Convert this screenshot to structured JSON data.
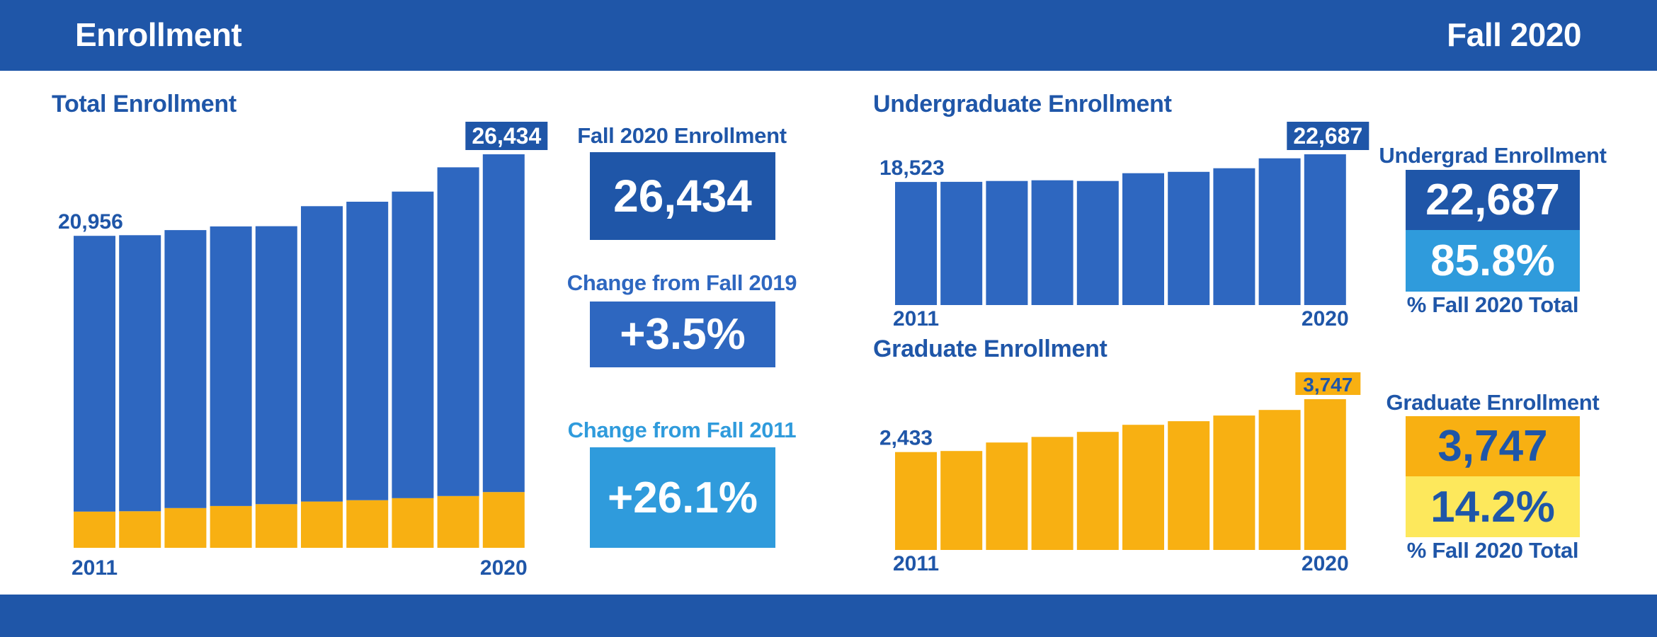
{
  "header": {
    "title": "Enrollment",
    "term": "Fall 2020"
  },
  "colors": {
    "brand_blue": "#1f56a8",
    "bar_blue": "#2e67c0",
    "light_blue": "#2f9bdc",
    "gold": "#f8b012",
    "light_yellow": "#fde85c",
    "white": "#ffffff"
  },
  "total": {
    "title": "Total Enrollment",
    "kpis": [
      {
        "label": "Fall 2020 Enrollment",
        "value": "26,434"
      },
      {
        "label": "Change from Fall 2019",
        "value": "+3.5%"
      },
      {
        "label": "Change from Fall 2011",
        "value": "+26.1%"
      }
    ]
  },
  "undergrad": {
    "title": "Undergraduate Enrollment",
    "kpi_label": "Undergrad Enrollment",
    "kpi_value": "22,687",
    "kpi_share": "85.8%",
    "kpi_share_caption": "% Fall 2020 Total"
  },
  "graduate": {
    "title": "Graduate Enrollment",
    "kpi_label": "Graduate Enrollment",
    "kpi_value": "3,747",
    "kpi_share": "14.2%",
    "kpi_share_caption": "% Fall 2020 Total"
  },
  "chart_data": [
    {
      "id": "total",
      "type": "bar",
      "stacked": true,
      "title": "Total Enrollment",
      "categories": [
        "2011",
        "2012",
        "2013",
        "2014",
        "2015",
        "2016",
        "2017",
        "2018",
        "2019",
        "2020"
      ],
      "tick_labels": [
        "2011",
        "2020"
      ],
      "series": [
        {
          "name": "Graduate",
          "color": "#f8b012",
          "values": [
            2433,
            2460,
            2670,
            2810,
            2935,
            3110,
            3200,
            3340,
            3480,
            3747
          ]
        },
        {
          "name": "Undergraduate",
          "color": "#2e67c0",
          "values": [
            18523,
            18540,
            18670,
            18780,
            18670,
            19840,
            20050,
            20590,
            22080,
            22687
          ]
        }
      ],
      "data_labels": [
        {
          "category": "2011",
          "text": "20,956",
          "boxed": false
        },
        {
          "category": "2020",
          "text": "26,434",
          "boxed": true
        }
      ],
      "ylim": [
        0,
        26434
      ],
      "grid": false,
      "legend": "none"
    },
    {
      "id": "undergrad",
      "type": "bar",
      "title": "Undergraduate Enrollment",
      "categories": [
        "2011",
        "2012",
        "2013",
        "2014",
        "2015",
        "2016",
        "2017",
        "2018",
        "2019",
        "2020"
      ],
      "tick_labels": [
        "2011",
        "2020"
      ],
      "series": [
        {
          "name": "Undergraduate",
          "color": "#2e67c0",
          "values": [
            18523,
            18540,
            18670,
            18780,
            18670,
            19840,
            20050,
            20590,
            22080,
            22687
          ]
        }
      ],
      "data_labels": [
        {
          "category": "2011",
          "text": "18,523",
          "boxed": false
        },
        {
          "category": "2020",
          "text": "22,687",
          "boxed": true
        }
      ],
      "ylim": [
        0,
        22687
      ],
      "grid": false,
      "legend": "none"
    },
    {
      "id": "graduate",
      "type": "bar",
      "title": "Graduate Enrollment",
      "categories": [
        "2011",
        "2012",
        "2013",
        "2014",
        "2015",
        "2016",
        "2017",
        "2018",
        "2019",
        "2020"
      ],
      "tick_labels": [
        "2011",
        "2020"
      ],
      "series": [
        {
          "name": "Graduate",
          "color": "#f8b012",
          "values": [
            2433,
            2460,
            2670,
            2810,
            2935,
            3110,
            3200,
            3340,
            3480,
            3747
          ]
        }
      ],
      "data_labels": [
        {
          "category": "2011",
          "text": "2,433",
          "boxed": false
        },
        {
          "category": "2020",
          "text": "3,747",
          "boxed": true
        }
      ],
      "ylim": [
        0,
        3747
      ],
      "grid": false,
      "legend": "none"
    }
  ]
}
